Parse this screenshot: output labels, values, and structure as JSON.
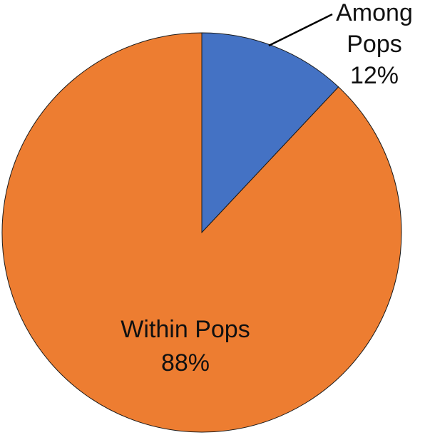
{
  "chart_data": {
    "type": "pie",
    "slices": [
      {
        "name": "Among Pops",
        "label_lines": [
          "Among",
          "Pops",
          "12%"
        ],
        "value": 12,
        "color": "#4472C4"
      },
      {
        "name": "Within Pops",
        "label_lines": [
          "Within Pops",
          "88%"
        ],
        "value": 88,
        "color": "#ED7D31"
      }
    ],
    "start_angle_deg": 0,
    "direction": "clockwise"
  }
}
